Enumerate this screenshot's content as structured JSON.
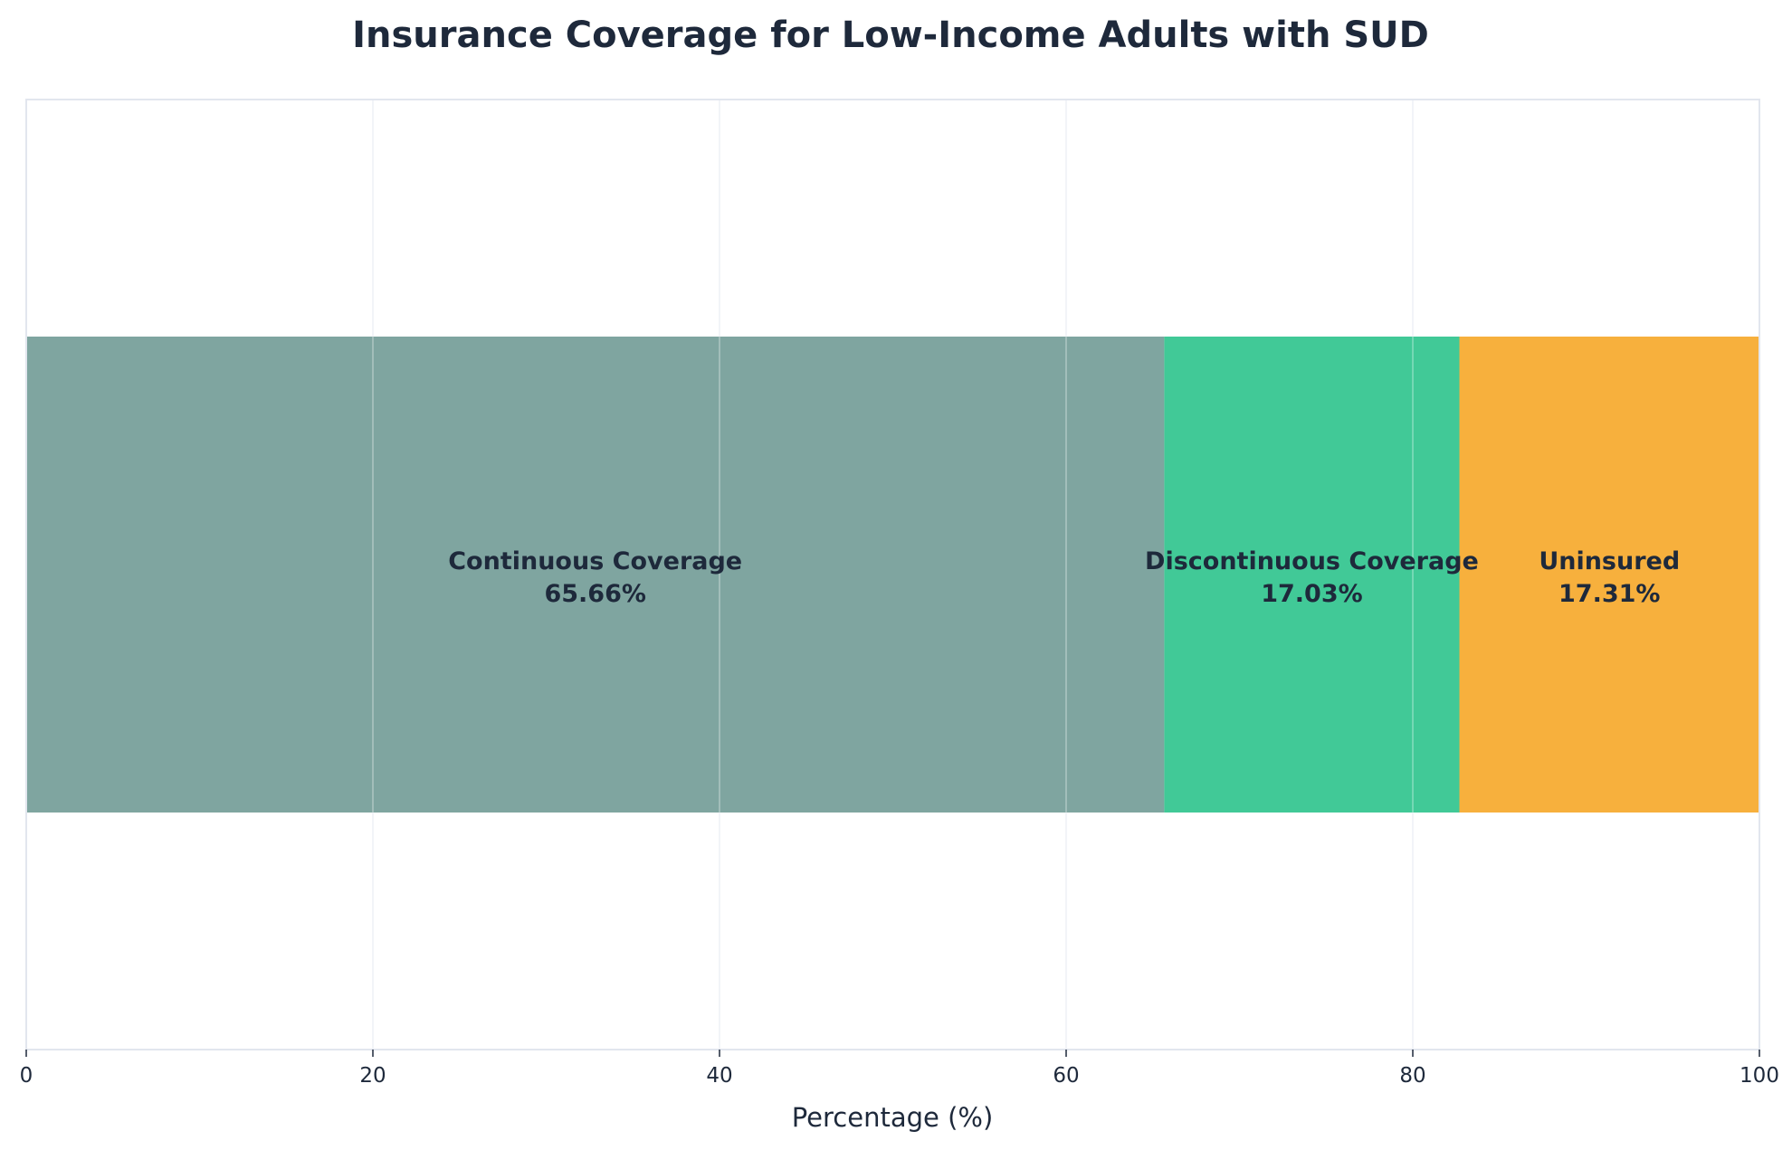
{
  "chart_data": {
    "type": "bar",
    "orientation": "horizontal-stacked",
    "title": "Insurance Coverage for Low-Income Adults with SUD",
    "xlabel": "Percentage (%)",
    "ylabel": "",
    "xlim": [
      0,
      100
    ],
    "xticks": [
      "0",
      "20",
      "40",
      "60",
      "80",
      "100"
    ],
    "grid": true,
    "segments": [
      {
        "name": "Continuous Coverage",
        "value": 65.66,
        "label": "65.66%",
        "color": "#7fa5a0"
      },
      {
        "name": "Discontinuous Coverage",
        "value": 17.03,
        "label": "17.03%",
        "color": "#41c997"
      },
      {
        "name": "Uninsured",
        "value": 17.31,
        "label": "17.31%",
        "color": "#f7b03d"
      }
    ]
  }
}
